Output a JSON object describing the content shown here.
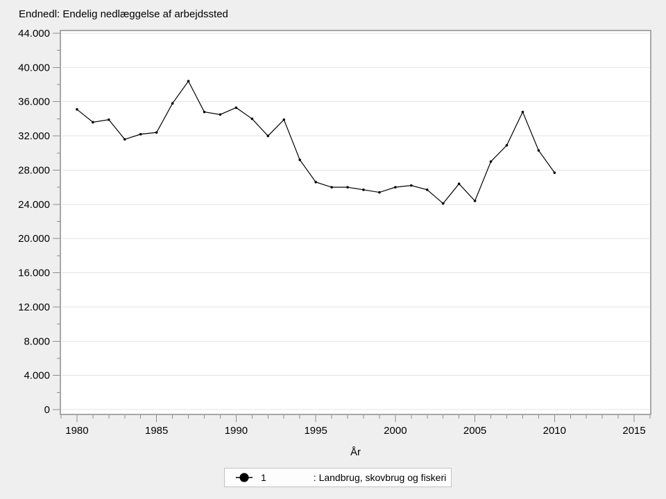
{
  "title": "Endnedl: Endelig nedlæggelse af arbejdssted",
  "colors": {
    "page_bg": "#efefef",
    "plot_bg": "#ffffff",
    "line": "#000000",
    "grid": "#e3e3e3",
    "axis_border": "#a6a6a6",
    "tick": "#8c8c8c"
  },
  "chart_data": {
    "type": "line",
    "title": "Endnedl: Endelig nedlæggelse af arbejdssted",
    "xlabel": "År",
    "ylabel": "",
    "x": [
      1980,
      1981,
      1982,
      1983,
      1984,
      1985,
      1986,
      1987,
      1988,
      1989,
      1990,
      1991,
      1992,
      1993,
      1994,
      1995,
      1996,
      1997,
      1998,
      1999,
      2000,
      2001,
      2002,
      2003,
      2004,
      2005,
      2006,
      2007,
      2008,
      2009,
      2010
    ],
    "series": [
      {
        "name": "1",
        "label": ": Landbrug, skovbrug og fiskeri",
        "values": [
          35100,
          33600,
          33900,
          31600,
          32200,
          32400,
          35800,
          38400,
          34800,
          34500,
          35300,
          34000,
          32000,
          33900,
          29200,
          26600,
          26000,
          26000,
          25700,
          25400,
          26000,
          26200,
          25700,
          24100,
          26400,
          24400,
          29000,
          30900,
          34800,
          30300,
          27700
        ]
      }
    ],
    "xlim": [
      1979,
      2016
    ],
    "ylim": [
      0,
      44000
    ],
    "x_major_ticks": [
      1980,
      1985,
      1990,
      1995,
      2000,
      2005,
      2010,
      2015
    ],
    "x_tick_labels": [
      "1980",
      "1985",
      "1990",
      "1995",
      "2000",
      "2005",
      "2010",
      "2015"
    ],
    "x_minor_step": 1,
    "y_major_ticks": [
      0,
      4000,
      8000,
      12000,
      16000,
      20000,
      24000,
      28000,
      32000,
      36000,
      40000,
      44000
    ],
    "y_tick_labels": [
      "0",
      "4.000",
      "8.000",
      "12.000",
      "16.000",
      "20.000",
      "24.000",
      "28.000",
      "32.000",
      "36.000",
      "40.000",
      "44.000"
    ],
    "y_minor_step": 2000,
    "grid": "horizontal-major",
    "legend_position": "bottom-center",
    "line_color": "#000000",
    "marker": "filled-circle"
  },
  "legend": {
    "marker": "filled-circle-on-line",
    "series_number": "1",
    "series_label": ": Landbrug, skovbrug og fiskeri"
  }
}
